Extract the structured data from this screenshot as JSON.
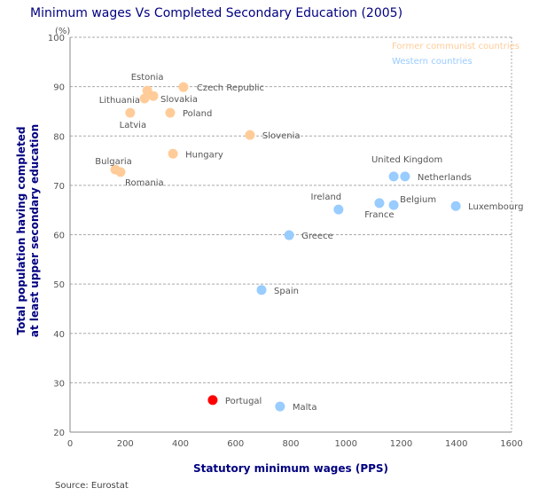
{
  "chart_data": {
    "type": "scatter",
    "title": "Minimum wages Vs Completed Secondary Education (2005)",
    "xlabel": "Statutory minimum wages (PPS)",
    "ylabel": "Total population having completed at least upper secondary education",
    "ylabel_lines": [
      "Total population having completed",
      "at least upper secondary education"
    ],
    "yunit": "(%)",
    "xlim": [
      0,
      1600
    ],
    "ylim": [
      20,
      100
    ],
    "xticks": [
      "0",
      "200",
      "400",
      "600",
      "800",
      "1000",
      "1200",
      "1400",
      "1600"
    ],
    "yticks": [
      "20",
      "30",
      "40",
      "50",
      "60",
      "70",
      "80",
      "90",
      "100"
    ],
    "grid": "horizontal dashed",
    "legend_position": "top-right",
    "series": [
      {
        "name": "Former communist countries",
        "color": "#FFCC99",
        "points": [
          {
            "label": "Estonia",
            "x": 280,
            "y": 89.2
          },
          {
            "label": "Czech Republic",
            "x": 411,
            "y": 89.9
          },
          {
            "label": "Lithuania",
            "x": 270,
            "y": 87.6
          },
          {
            "label": "Slovakia",
            "x": 302,
            "y": 88.1
          },
          {
            "label": "Poland",
            "x": 363,
            "y": 84.7
          },
          {
            "label": "Latvia",
            "x": 218,
            "y": 84.7
          },
          {
            "label": "Slovenia",
            "x": 652,
            "y": 80.2
          },
          {
            "label": "Hungary",
            "x": 373,
            "y": 76.4
          },
          {
            "label": "Bulgaria",
            "x": 164,
            "y": 73.2
          },
          {
            "label": "Romania",
            "x": 183,
            "y": 72.7
          }
        ]
      },
      {
        "name": "Western countries",
        "color": "#99CCFF",
        "points": [
          {
            "label": "United Kingdom",
            "x": 1173,
            "y": 71.8
          },
          {
            "label": "Netherlands",
            "x": 1214,
            "y": 71.8
          },
          {
            "label": "Ireland",
            "x": 973,
            "y": 65.1
          },
          {
            "label": "France",
            "x": 1121,
            "y": 66.4
          },
          {
            "label": "Belgium",
            "x": 1173,
            "y": 66.0
          },
          {
            "label": "Luxembourg",
            "x": 1398,
            "y": 65.8
          },
          {
            "label": "Greece",
            "x": 794,
            "y": 59.9
          },
          {
            "label": "Spain",
            "x": 694,
            "y": 48.8
          },
          {
            "label": "Malta",
            "x": 761,
            "y": 25.2
          }
        ]
      },
      {
        "color": "#FF0000",
        "points": [
          {
            "label": "Portugal",
            "x": 517,
            "y": 26.5
          }
        ]
      }
    ],
    "source": "Source: Eurostat"
  }
}
